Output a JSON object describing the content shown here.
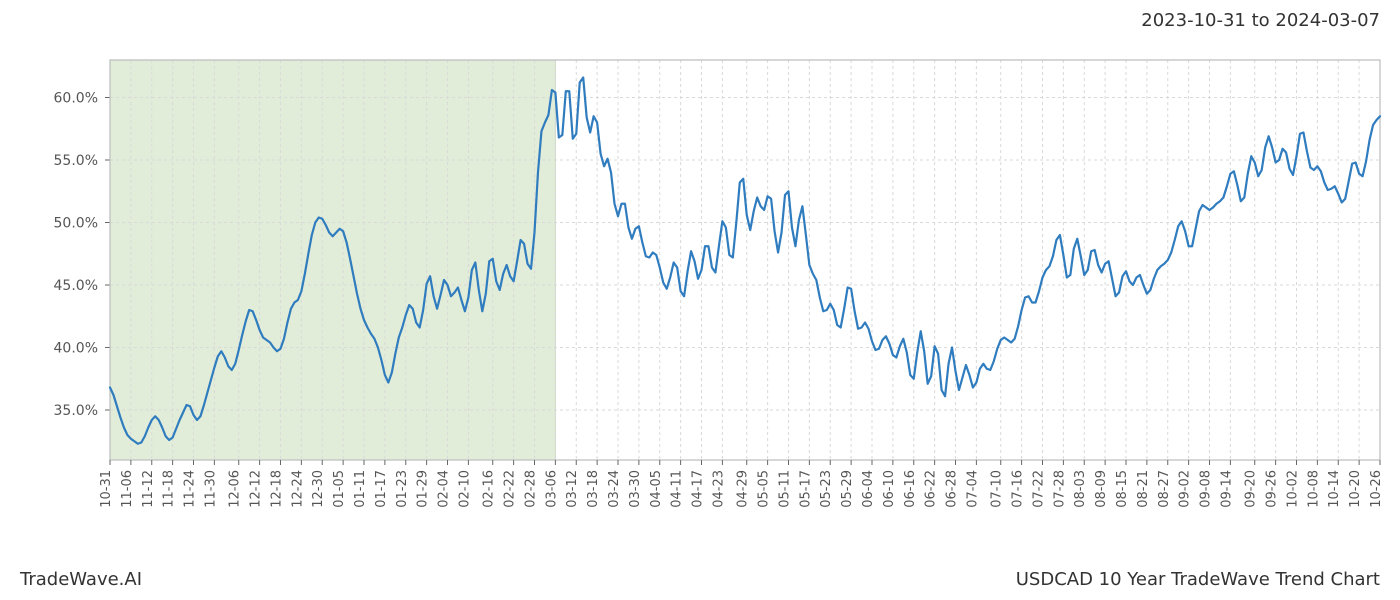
{
  "header": {
    "date_range": "2023-10-31 to 2024-03-07"
  },
  "footer": {
    "left": "TradeWave.AI",
    "right": "USDCAD 10 Year TradeWave Trend Chart"
  },
  "chart": {
    "type": "line",
    "background_color": "#ffffff",
    "plot_border_color": "#bcbcbc",
    "grid_color": "#d9d9d9",
    "highlight_fill": "#e2edd9",
    "highlight_stroke": "#c9dcc0",
    "line_color": "#2f7cbf",
    "line_width": 2.2,
    "axis_font_size": 14,
    "xaxis_font_size": 13,
    "axis_text_color": "#555555",
    "ylim": [
      31,
      63
    ],
    "yticks": [
      35.0,
      40.0,
      45.0,
      50.0,
      55.0,
      60.0
    ],
    "ytick_labels": [
      "35.0%",
      "40.0%",
      "45.0%",
      "50.0%",
      "55.0%",
      "60.0%"
    ],
    "x_labels": [
      "10-31",
      "11-06",
      "11-12",
      "11-18",
      "11-24",
      "11-30",
      "12-06",
      "12-12",
      "12-18",
      "12-24",
      "12-30",
      "01-05",
      "01-11",
      "01-17",
      "01-23",
      "01-29",
      "02-04",
      "02-10",
      "02-16",
      "02-22",
      "02-28",
      "03-06",
      "03-12",
      "03-18",
      "03-24",
      "03-30",
      "04-05",
      "04-11",
      "04-17",
      "04-23",
      "04-29",
      "05-05",
      "05-11",
      "05-17",
      "05-23",
      "05-29",
      "06-04",
      "06-10",
      "06-16",
      "06-22",
      "06-28",
      "07-04",
      "07-10",
      "07-16",
      "07-22",
      "07-28",
      "08-03",
      "08-09",
      "08-15",
      "08-21",
      "08-27",
      "09-02",
      "09-08",
      "09-14",
      "09-20",
      "09-26",
      "10-02",
      "10-08",
      "10-14",
      "10-20",
      "10-26"
    ],
    "highlight_range": [
      0,
      128
    ],
    "series": [
      36.8,
      36.2,
      35.3,
      34.4,
      33.6,
      33.0,
      32.7,
      32.5,
      32.3,
      32.4,
      32.9,
      33.6,
      34.2,
      34.5,
      34.2,
      33.6,
      32.9,
      32.6,
      32.8,
      33.5,
      34.2,
      34.8,
      35.4,
      35.3,
      34.6,
      34.2,
      34.5,
      35.4,
      36.4,
      37.4,
      38.4,
      39.3,
      39.7,
      39.2,
      38.5,
      38.2,
      38.7,
      39.8,
      41.0,
      42.1,
      43.0,
      42.9,
      42.2,
      41.4,
      40.8,
      40.6,
      40.4,
      40.0,
      39.7,
      39.9,
      40.7,
      42.0,
      43.1,
      43.6,
      43.8,
      44.5,
      45.9,
      47.5,
      49.0,
      50.0,
      50.4,
      50.3,
      49.8,
      49.2,
      48.9,
      49.2,
      49.5,
      49.3,
      48.4,
      47.1,
      45.7,
      44.3,
      43.1,
      42.2,
      41.6,
      41.1,
      40.7,
      40.0,
      39.0,
      37.8,
      37.2,
      38.0,
      39.5,
      40.8,
      41.6,
      42.6,
      43.4,
      43.1,
      42.0,
      41.6,
      43.0,
      45.1,
      45.7,
      44.1,
      43.1,
      44.2,
      45.4,
      45.0,
      44.1,
      44.4,
      44.8,
      43.8,
      42.9,
      44.0,
      46.2,
      46.8,
      44.6,
      42.9,
      44.3,
      46.9,
      47.1,
      45.3,
      44.6,
      45.9,
      46.6,
      45.7,
      45.3,
      46.9,
      48.6,
      48.3,
      46.7,
      46.3,
      49.2,
      54.0,
      57.3,
      58.0,
      58.6,
      60.6,
      60.4,
      56.8,
      57.0,
      60.5,
      60.5,
      56.7,
      57.1,
      61.2,
      61.6,
      58.4,
      57.2,
      58.5,
      58.0,
      55.5,
      54.5,
      55.1,
      54.0,
      51.5,
      50.5,
      51.5,
      51.5,
      49.6,
      48.7,
      49.5,
      49.7,
      48.4,
      47.3,
      47.2,
      47.6,
      47.4,
      46.4,
      45.2,
      44.7,
      45.6,
      46.8,
      46.4,
      44.5,
      44.1,
      46.1,
      47.7,
      46.9,
      45.5,
      46.2,
      48.1,
      48.1,
      46.4,
      46.0,
      48.1,
      50.1,
      49.6,
      47.4,
      47.2,
      50.0,
      53.2,
      53.5,
      50.6,
      49.4,
      50.9,
      52.0,
      51.3,
      51.0,
      52.1,
      51.9,
      49.3,
      47.6,
      49.2,
      52.2,
      52.5,
      49.6,
      48.1,
      50.2,
      51.3,
      49.0,
      46.6,
      45.9,
      45.4,
      44.0,
      42.9,
      43.0,
      43.5,
      43.0,
      41.8,
      41.6,
      43.1,
      44.8,
      44.7,
      42.9,
      41.5,
      41.6,
      42.0,
      41.5,
      40.5,
      39.8,
      39.9,
      40.6,
      40.9,
      40.3,
      39.4,
      39.2,
      40.1,
      40.7,
      39.6,
      37.8,
      37.5,
      39.6,
      41.3,
      39.7,
      37.1,
      37.7,
      40.1,
      39.5,
      36.6,
      36.1,
      38.7,
      40.0,
      38.1,
      36.6,
      37.6,
      38.6,
      37.8,
      36.8,
      37.2,
      38.3,
      38.7,
      38.3,
      38.2,
      38.9,
      39.9,
      40.6,
      40.8,
      40.6,
      40.4,
      40.7,
      41.7,
      43.0,
      44.0,
      44.1,
      43.6,
      43.6,
      44.5,
      45.6,
      46.2,
      46.5,
      47.3,
      48.6,
      49.0,
      47.4,
      45.6,
      45.8,
      47.9,
      48.7,
      47.3,
      45.8,
      46.2,
      47.7,
      47.8,
      46.6,
      46.0,
      46.7,
      46.9,
      45.5,
      44.1,
      44.4,
      45.7,
      46.1,
      45.3,
      45.0,
      45.6,
      45.8,
      45.0,
      44.3,
      44.6,
      45.5,
      46.2,
      46.5,
      46.7,
      47.0,
      47.6,
      48.6,
      49.7,
      50.1,
      49.3,
      48.1,
      48.1,
      49.5,
      50.9,
      51.4,
      51.2,
      51.0,
      51.2,
      51.5,
      51.7,
      52.0,
      52.9,
      53.9,
      54.1,
      53.0,
      51.7,
      52.0,
      53.9,
      55.3,
      54.8,
      53.7,
      54.2,
      56.0,
      56.9,
      56.0,
      54.8,
      55.0,
      55.9,
      55.6,
      54.3,
      53.8,
      55.3,
      57.1,
      57.2,
      55.7,
      54.4,
      54.2,
      54.5,
      54.1,
      53.2,
      52.6,
      52.7,
      52.9,
      52.3,
      51.6,
      51.9,
      53.3,
      54.7,
      54.8,
      53.9,
      53.7,
      54.9,
      56.6,
      57.8,
      58.2,
      58.5
    ]
  }
}
